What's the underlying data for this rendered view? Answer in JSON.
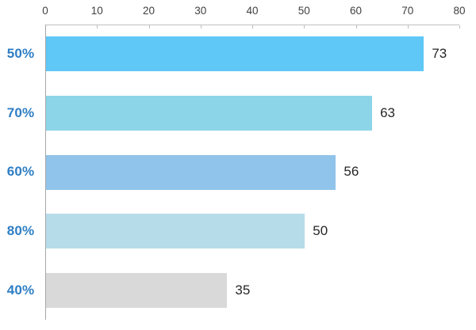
{
  "chart_data": {
    "type": "bar",
    "orientation": "horizontal",
    "axis_position": "top",
    "categories": [
      "50%",
      "70%",
      "60%",
      "80%",
      "40%"
    ],
    "values": [
      73,
      63,
      56,
      50,
      35
    ],
    "bar_colors": [
      "#5FC8F7",
      "#8CD5E8",
      "#91C4EA",
      "#B6DCE9",
      "#D9D9D9"
    ],
    "x_ticks": [
      0,
      10,
      20,
      30,
      40,
      50,
      60,
      70,
      80
    ],
    "xlim": [
      0,
      80
    ],
    "grid": false,
    "legend": false,
    "colors": {
      "category_label": "#2E7EC4",
      "value_label": "#262626",
      "tick_label": "#404040",
      "axis_line": "#BFBFBF",
      "y_axis_line": "#A6A6A6",
      "background": "#FFFFFF"
    }
  }
}
